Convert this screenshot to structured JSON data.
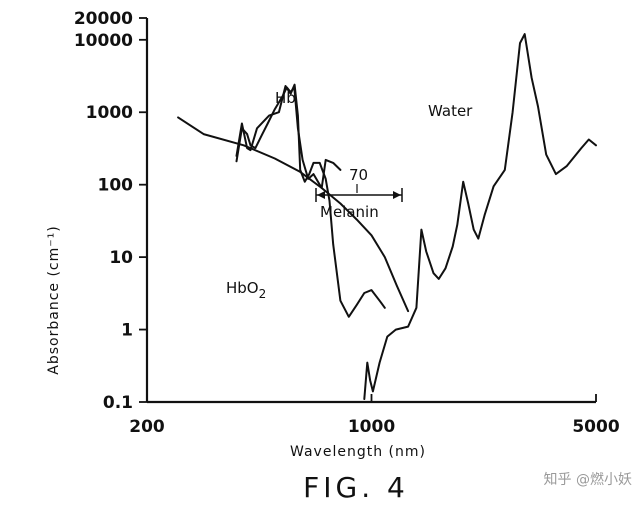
{
  "chart_data": {
    "type": "line",
    "title": "",
    "xlabel": "Wavelength (nm)",
    "ylabel": "Absorbance (cm⁻¹)",
    "x_scale": "log",
    "y_scale": "log",
    "xlim": [
      200,
      5000
    ],
    "ylim": [
      0.1,
      20000
    ],
    "x_tick_labels": [
      {
        "value": 200,
        "label": "200"
      },
      {
        "value": 1000,
        "label": "1000"
      },
      {
        "value": 5000,
        "label": "5000"
      }
    ],
    "y_tick_labels": [
      {
        "value": 0.1,
        "label": "0.1"
      },
      {
        "value": 1,
        "label": "1"
      },
      {
        "value": 10,
        "label": "10"
      },
      {
        "value": 100,
        "label": "100"
      },
      {
        "value": 1000,
        "label": "1000"
      },
      {
        "value": 10000,
        "label": "10000"
      },
      {
        "value": 20000,
        "label": "20000"
      }
    ],
    "grid": false,
    "series": [
      {
        "name": "Hb",
        "points": [
          [
            380,
            210
          ],
          [
            395,
            600
          ],
          [
            410,
            500
          ],
          [
            420,
            350
          ],
          [
            435,
            320
          ],
          [
            455,
            480
          ],
          [
            475,
            700
          ],
          [
            500,
            1100
          ],
          [
            530,
            1700
          ],
          [
            545,
            2200
          ],
          [
            560,
            1900
          ],
          [
            575,
            2200
          ],
          [
            590,
            600
          ],
          [
            610,
            220
          ],
          [
            635,
            120
          ],
          [
            660,
            140
          ],
          [
            700,
            90
          ],
          [
            720,
            220
          ],
          [
            760,
            200
          ],
          [
            800,
            160
          ]
        ]
      },
      {
        "name": "HbO2",
        "points": [
          [
            380,
            250
          ],
          [
            395,
            700
          ],
          [
            410,
            320
          ],
          [
            420,
            300
          ],
          [
            440,
            600
          ],
          [
            480,
            900
          ],
          [
            515,
            1000
          ],
          [
            540,
            2300
          ],
          [
            560,
            1800
          ],
          [
            576,
            2400
          ],
          [
            590,
            900
          ],
          [
            600,
            160
          ],
          [
            620,
            110
          ],
          [
            640,
            140
          ],
          [
            660,
            200
          ],
          [
            690,
            200
          ],
          [
            720,
            120
          ],
          [
            740,
            60
          ],
          [
            760,
            15
          ],
          [
            800,
            2.5
          ],
          [
            850,
            1.5
          ],
          [
            900,
            2.2
          ],
          [
            950,
            3.2
          ],
          [
            1000,
            3.5
          ],
          [
            1060,
            2.5
          ],
          [
            1100,
            2
          ]
        ]
      },
      {
        "name": "Melanin",
        "points": [
          [
            250,
            850
          ],
          [
            300,
            500
          ],
          [
            400,
            350
          ],
          [
            500,
            230
          ],
          [
            600,
            150
          ],
          [
            700,
            90
          ],
          [
            800,
            55
          ],
          [
            900,
            33
          ],
          [
            1000,
            20
          ],
          [
            1100,
            10
          ],
          [
            1200,
            4
          ],
          [
            1300,
            1.8
          ]
        ]
      },
      {
        "name": "Water",
        "points": [
          [
            950,
            0.11
          ],
          [
            970,
            0.35
          ],
          [
            990,
            0.2
          ],
          [
            1010,
            0.14
          ],
          [
            1060,
            0.35
          ],
          [
            1120,
            0.8
          ],
          [
            1190,
            1
          ],
          [
            1300,
            1.1
          ],
          [
            1380,
            2
          ],
          [
            1430,
            24
          ],
          [
            1480,
            12
          ],
          [
            1560,
            6
          ],
          [
            1620,
            5
          ],
          [
            1700,
            7
          ],
          [
            1790,
            14
          ],
          [
            1850,
            28
          ],
          [
            1930,
            110
          ],
          [
            2000,
            55
          ],
          [
            2080,
            24
          ],
          [
            2150,
            18
          ],
          [
            2250,
            38
          ],
          [
            2400,
            95
          ],
          [
            2600,
            160
          ],
          [
            2750,
            1000
          ],
          [
            2900,
            9000
          ],
          [
            3000,
            12000
          ],
          [
            3150,
            3000
          ],
          [
            3300,
            1200
          ],
          [
            3500,
            260
          ],
          [
            3750,
            140
          ],
          [
            4050,
            180
          ],
          [
            4500,
            320
          ],
          [
            4750,
            420
          ],
          [
            5000,
            350
          ]
        ]
      }
    ],
    "annotations": {
      "hb": "Hb",
      "hbo2_prefix": "HbO",
      "hbo2_sub": "2",
      "water": "Water",
      "melanin": "Melanin",
      "span_value": "70"
    },
    "figure_caption": "FIG. 4"
  },
  "watermark": "知乎 @燃小妖"
}
